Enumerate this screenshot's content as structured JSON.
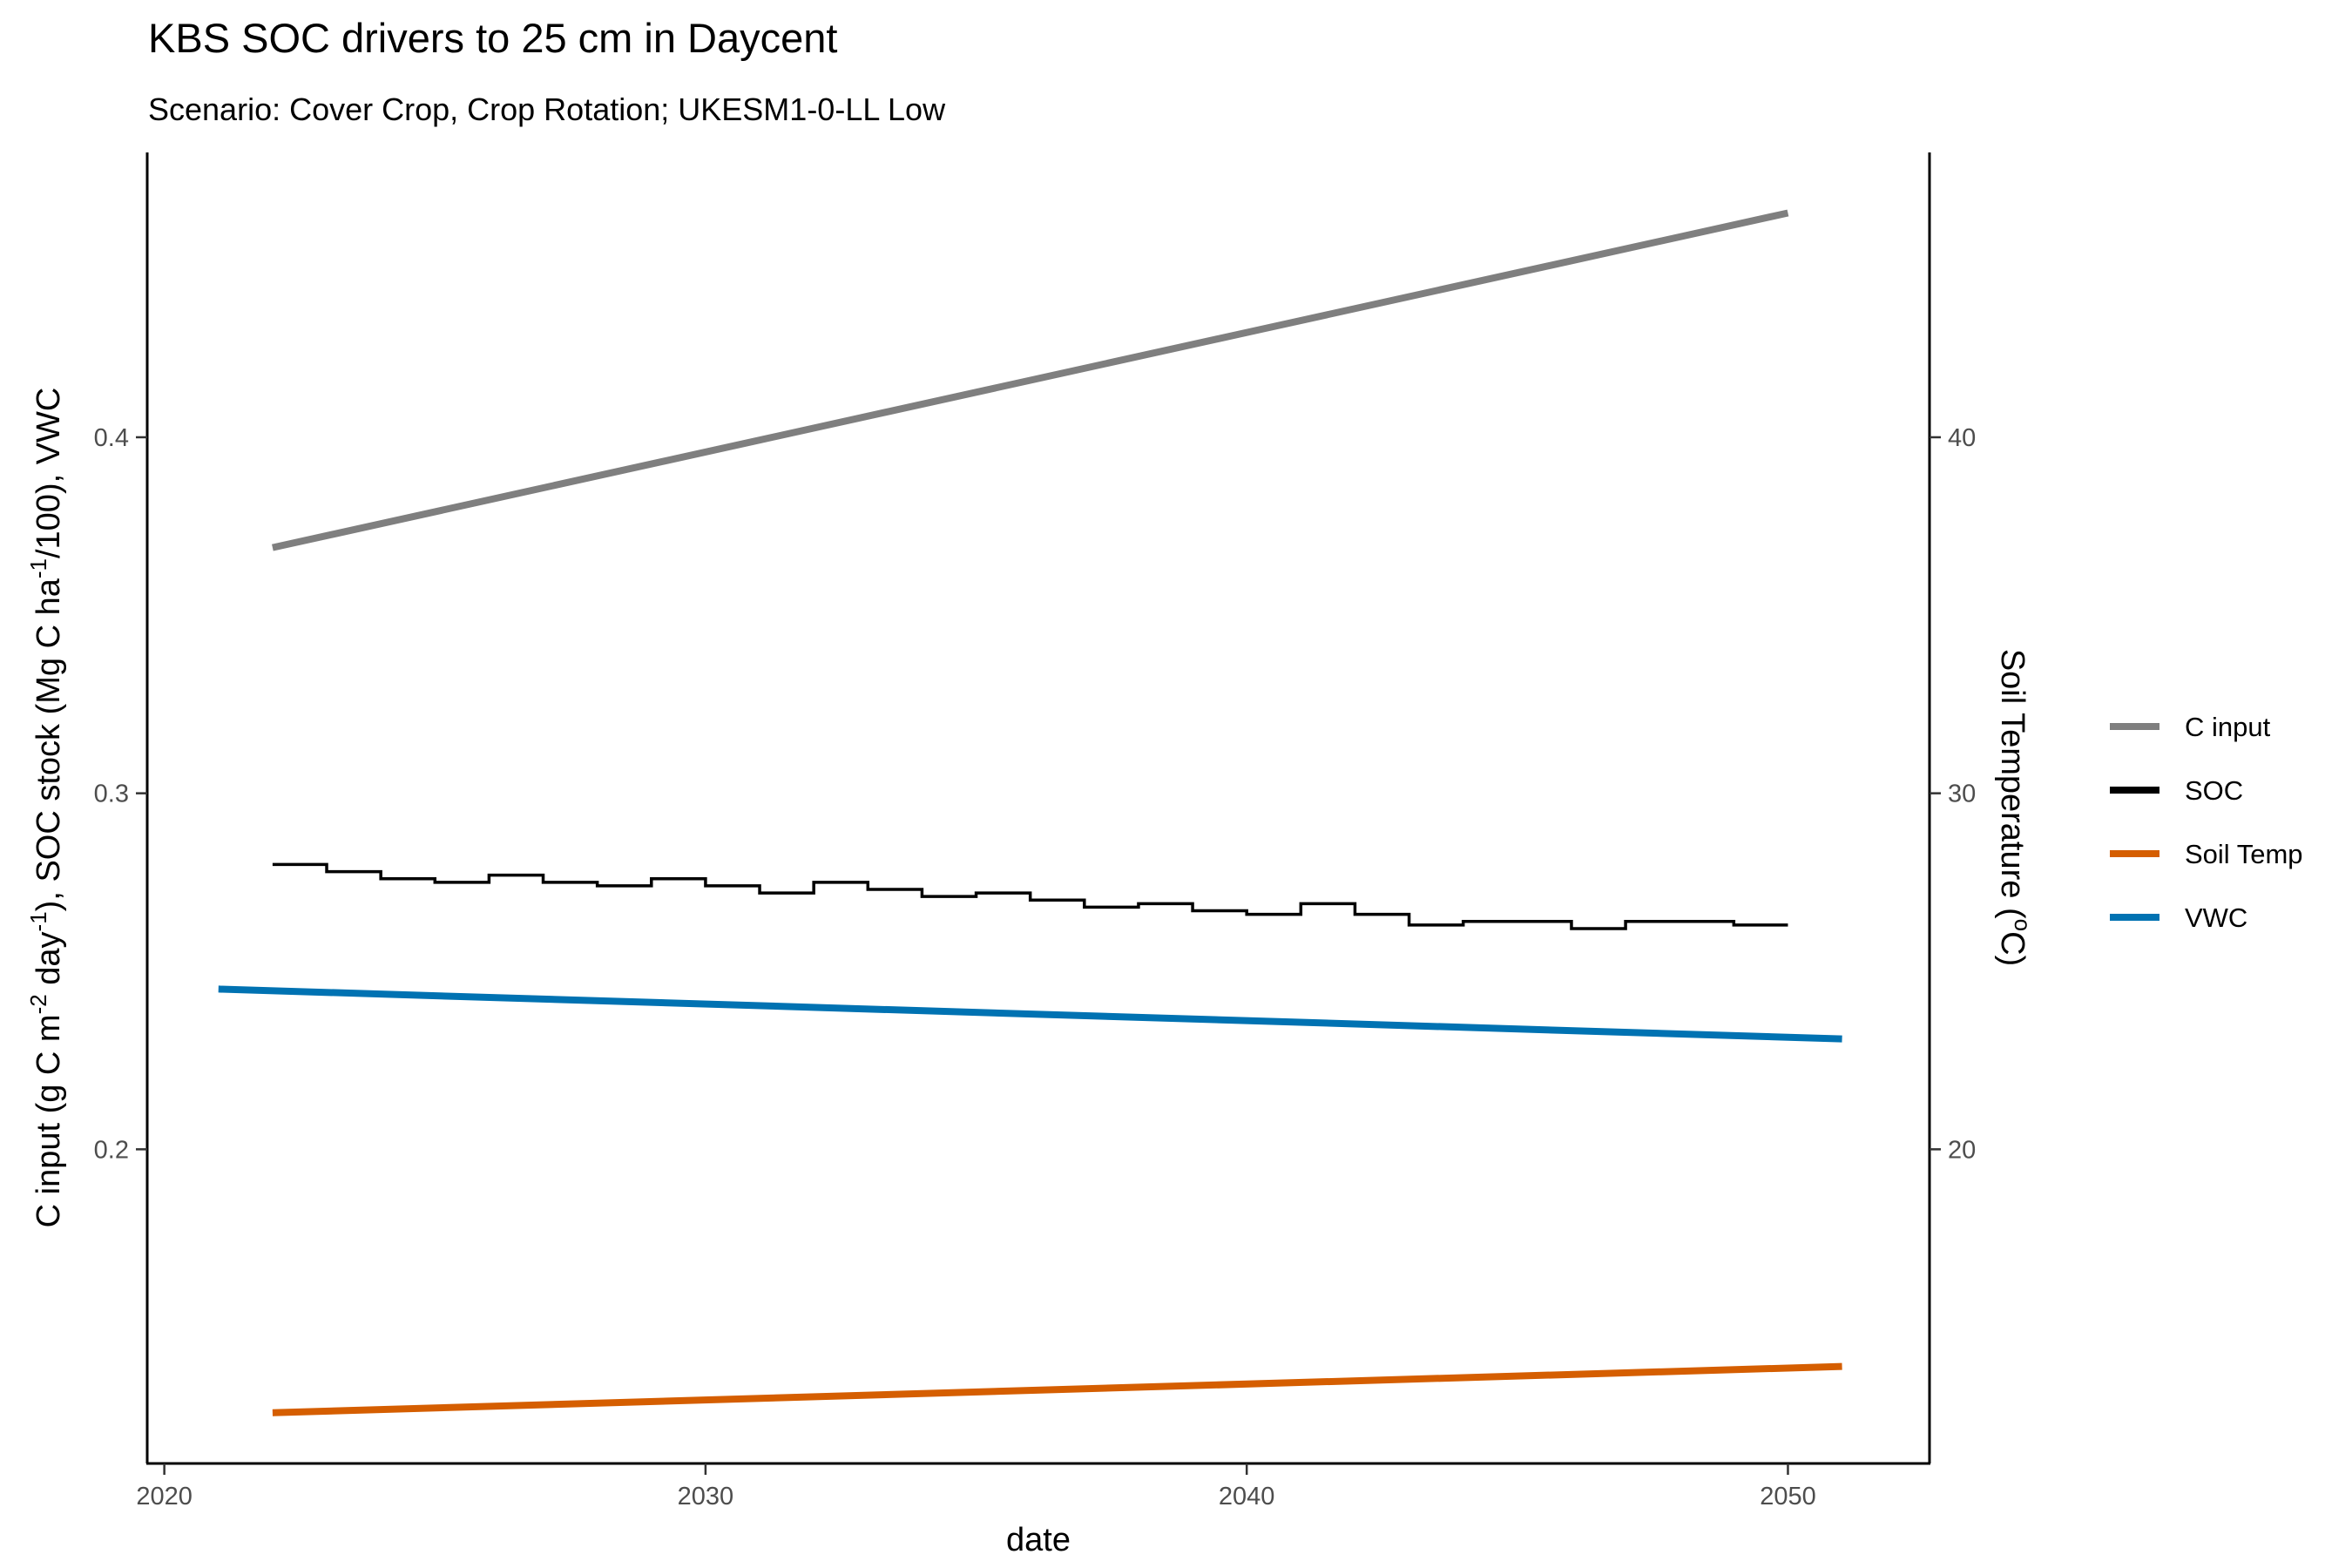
{
  "chart_data": {
    "type": "line",
    "title": "KBS SOC drivers to 25 cm in Daycent",
    "subtitle": "Scenario: Cover Crop, Crop Rotation; UKESM1-0-LL Low",
    "xlabel": "date",
    "ylabel_left": {
      "part1": "C input (g C m",
      "sup1": "-2",
      "part2": " day",
      "sup2": "-1",
      "part3": "), SOC stock (Mg C ha",
      "sup3": "-1",
      "part4": "/100), VWC"
    },
    "ylabel_right": {
      "part1": "Soil Temperature (",
      "sup": "o",
      "part2": "C)"
    },
    "xlim": [
      2019.7,
      2052.6
    ],
    "ylim_left": [
      0.112,
      0.48
    ],
    "ylim_right": [
      11.2,
      48.0
    ],
    "x_ticks": [
      2020,
      2030,
      2040,
      2050
    ],
    "y_left_ticks": [
      0.2,
      0.3,
      0.4
    ],
    "y_left_tick_labels": [
      "0.2",
      "0.3",
      "0.4"
    ],
    "y_right_ticks": [
      20,
      30,
      40
    ],
    "y_right_tick_labels": [
      "20",
      "30",
      "40"
    ],
    "legend_position": "right",
    "series": [
      {
        "name": "C input",
        "color": "#7f7f7f",
        "axis": "left",
        "style": "line",
        "x": [
          2022,
          2050
        ],
        "values": [
          0.369,
          0.463
        ]
      },
      {
        "name": "SOC",
        "color": "#000000",
        "axis": "left",
        "style": "step",
        "x": [
          2022,
          2023,
          2024,
          2025,
          2026,
          2027,
          2028,
          2029,
          2030,
          2031,
          2032,
          2033,
          2034,
          2035,
          2036,
          2037,
          2038,
          2039,
          2040,
          2041,
          2042,
          2043,
          2044,
          2045,
          2046,
          2047,
          2048,
          2049,
          2050
        ],
        "values": [
          0.28,
          0.278,
          0.276,
          0.275,
          0.277,
          0.275,
          0.274,
          0.276,
          0.274,
          0.272,
          0.275,
          0.273,
          0.271,
          0.272,
          0.27,
          0.268,
          0.269,
          0.267,
          0.266,
          0.269,
          0.266,
          0.263,
          0.264,
          0.264,
          0.262,
          0.264,
          0.264,
          0.263,
          0.263
        ]
      },
      {
        "name": "Soil Temp",
        "color": "#d55e00",
        "axis": "right",
        "style": "line",
        "x": [
          2022,
          2051
        ],
        "values": [
          12.6,
          13.9
        ]
      },
      {
        "name": "VWC",
        "color": "#0072b2",
        "axis": "left",
        "style": "line",
        "x": [
          2021,
          2051
        ],
        "values": [
          0.245,
          0.231
        ]
      }
    ]
  }
}
